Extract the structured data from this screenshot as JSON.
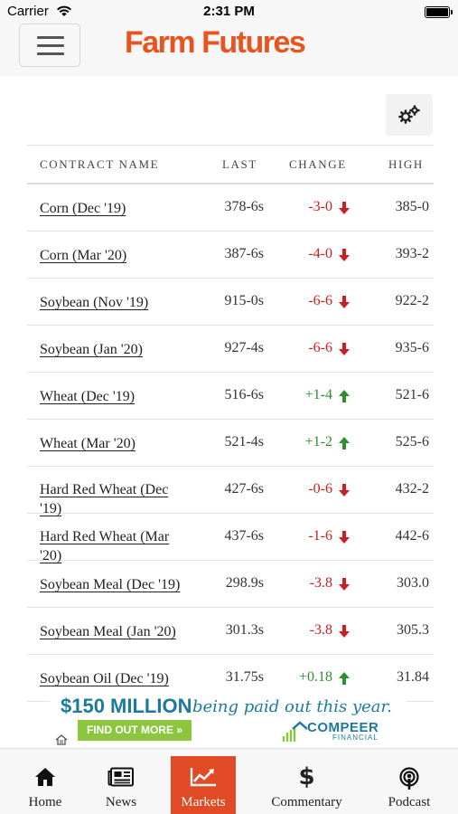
{
  "status_bar": {
    "carrier": "Carrier",
    "time": "2:31 PM"
  },
  "header": {
    "logo": "Farm Futures"
  },
  "table": {
    "headers": {
      "name": "CONTRACT NAME",
      "last": "LAST",
      "change": "CHANGE",
      "high": "HIGH"
    },
    "rows": [
      {
        "name": "Corn (Dec '19)",
        "last": "378-6s",
        "change": "-3-0",
        "direction": "down",
        "high": "385-0"
      },
      {
        "name": "Corn (Mar '20)",
        "last": "387-6s",
        "change": "-4-0",
        "direction": "down",
        "high": "393-2"
      },
      {
        "name": "Soybean (Nov '19)",
        "last": "915-0s",
        "change": "-6-6",
        "direction": "down",
        "high": "922-2"
      },
      {
        "name": "Soybean (Jan '20)",
        "last": "927-4s",
        "change": "-6-6",
        "direction": "down",
        "high": "935-6"
      },
      {
        "name": "Wheat (Dec '19)",
        "last": "516-6s",
        "change": "+1-4",
        "direction": "up",
        "high": "521-6"
      },
      {
        "name": "Wheat (Mar '20)",
        "last": "521-4s",
        "change": "+1-2",
        "direction": "up",
        "high": "525-6"
      },
      {
        "name": "Hard Red Wheat (Dec '19)",
        "last": "427-6s",
        "change": "-0-6",
        "direction": "down",
        "high": "432-2"
      },
      {
        "name": "Hard Red Wheat (Mar '20)",
        "last": "437-6s",
        "change": "-1-6",
        "direction": "down",
        "high": "442-6"
      },
      {
        "name": "Soybean Meal (Dec '19)",
        "last": "298.9s",
        "change": "-3.8",
        "direction": "down",
        "high": "303.0"
      },
      {
        "name": "Soybean Meal (Jan '20)",
        "last": "301.3s",
        "change": "-3.8",
        "direction": "down",
        "high": "305.3"
      },
      {
        "name": "Soybean Oil (Dec '19)",
        "last": "31.75s",
        "change": "+0.18",
        "direction": "up",
        "high": "31.84"
      }
    ]
  },
  "ad": {
    "headline": "$150 MILLION",
    "script": "being paid out this year.",
    "cta": "FIND OUT MORE »",
    "brand": "COMPEER",
    "brand_sub": "FINANCIAL"
  },
  "tabs": {
    "home": "Home",
    "news": "News",
    "markets": "Markets",
    "commentary": "Commentary",
    "podcast": "Podcast"
  },
  "colors": {
    "accent": "#e04a25",
    "logo": "#e8531e",
    "down": "#c9201f",
    "up": "#2f8f2f",
    "ad_blue": "#1c7a9c",
    "ad_green": "#8cc63e"
  }
}
